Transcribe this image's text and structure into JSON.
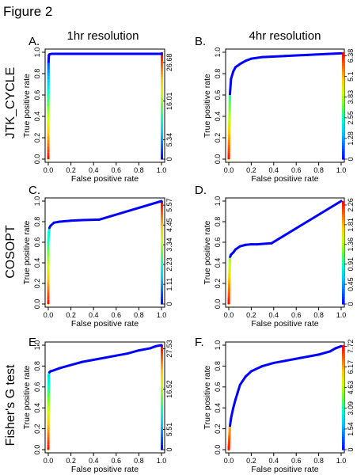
{
  "figure_title": "Figure 2",
  "column_headers": [
    "1hr resolution",
    "4hr resolution"
  ],
  "row_labels": [
    "JTK_CYCLE",
    "COSOPT",
    "Fisher's G test"
  ],
  "axis": {
    "xlabel": "False positive rate",
    "ylabel": "True positive rate",
    "ticks": [
      "0.0",
      "0.2",
      "0.4",
      "0.6",
      "0.8",
      "1.0"
    ]
  },
  "colorscale": [
    "#0000ff",
    "#0066ff",
    "#00ccff",
    "#00ffcc",
    "#66ff33",
    "#ccff00",
    "#ffcc00",
    "#ff6600",
    "#ff0000"
  ],
  "line_color": "#0000ff",
  "chart_data": [
    {
      "panel": "A.",
      "type": "line",
      "method": "JTK_CYCLE",
      "resolution": "1hr resolution",
      "xlabel": "False positive rate",
      "ylabel": "True positive rate",
      "xlim": [
        0,
        1
      ],
      "ylim": [
        0,
        1
      ],
      "x": [
        0.0,
        0.0,
        0.002,
        0.005,
        0.01,
        0.03,
        1.0
      ],
      "y": [
        0.0,
        0.5,
        0.9,
        0.97,
        0.98,
        0.985,
        0.985
      ],
      "colorbar": {
        "ticks": [
          "0",
          "5.34",
          "16.01",
          "26.68"
        ],
        "values": [
          0,
          5.34,
          16.01,
          26.68
        ],
        "max": 29.5
      }
    },
    {
      "panel": "B.",
      "type": "line",
      "method": "JTK_CYCLE",
      "resolution": "4hr resolution",
      "xlabel": "False positive rate",
      "ylabel": "True positive rate",
      "xlim": [
        0,
        1
      ],
      "ylim": [
        0,
        1
      ],
      "x": [
        0.0,
        0.005,
        0.01,
        0.02,
        0.04,
        0.06,
        0.1,
        0.15,
        0.2,
        0.3,
        0.5,
        0.7,
        0.9,
        1.0
      ],
      "y": [
        0.0,
        0.3,
        0.6,
        0.75,
        0.82,
        0.86,
        0.89,
        0.92,
        0.94,
        0.955,
        0.965,
        0.975,
        0.985,
        0.99
      ],
      "colorbar": {
        "ticks": [
          "0",
          "1.28",
          "2.55",
          "3.83",
          "5.1",
          "6.38"
        ],
        "values": [
          0,
          1.28,
          2.55,
          3.83,
          5.1,
          6.38
        ],
        "max": 6.6
      }
    },
    {
      "panel": "C.",
      "type": "line",
      "method": "COSOPT",
      "resolution": "1hr resolution",
      "xlabel": "False positive rate",
      "ylabel": "True positive rate",
      "xlim": [
        0,
        1
      ],
      "ylim": [
        0,
        1
      ],
      "x": [
        0.0,
        0.0,
        0.0,
        0.005,
        0.01,
        0.02,
        0.05,
        0.1,
        0.2,
        0.3,
        0.45,
        1.0
      ],
      "y": [
        0.0,
        0.3,
        0.6,
        0.7,
        0.74,
        0.76,
        0.79,
        0.8,
        0.81,
        0.815,
        0.82,
        1.0
      ],
      "colorbar": {
        "ticks": [
          "0",
          "1.11",
          "2.23",
          "3.34",
          "4.45",
          "5.57"
        ],
        "values": [
          0,
          1.11,
          2.23,
          3.34,
          4.45,
          5.57
        ],
        "max": 5.8
      }
    },
    {
      "panel": "D.",
      "type": "line",
      "method": "COSOPT",
      "resolution": "4hr resolution",
      "xlabel": "False positive rate",
      "ylabel": "True positive rate",
      "xlim": [
        0,
        1
      ],
      "ylim": [
        0,
        1
      ],
      "x": [
        0.0,
        0.005,
        0.01,
        0.02,
        0.04,
        0.06,
        0.1,
        0.15,
        0.2,
        0.25,
        0.38,
        1.0
      ],
      "y": [
        0.0,
        0.25,
        0.45,
        0.48,
        0.5,
        0.53,
        0.56,
        0.575,
        0.58,
        0.58,
        0.59,
        1.0
      ],
      "colorbar": {
        "ticks": [
          "0",
          "0.45",
          "0.91",
          "1.36",
          "1.81",
          "2.26"
        ],
        "values": [
          0,
          0.45,
          0.91,
          1.36,
          1.81,
          2.26
        ],
        "max": 2.35
      }
    },
    {
      "panel": "E.",
      "type": "line",
      "method": "Fisher's G test",
      "resolution": "1hr resolution",
      "xlabel": "False positive rate",
      "ylabel": "True positive rate",
      "xlim": [
        0,
        1
      ],
      "ylim": [
        0,
        1
      ],
      "x": [
        0.0,
        0.0,
        0.005,
        0.01,
        0.02,
        0.05,
        0.1,
        0.2,
        0.3,
        0.4,
        0.5,
        0.6,
        0.7,
        0.8,
        0.9,
        0.95,
        1.0
      ],
      "y": [
        0.0,
        0.5,
        0.72,
        0.74,
        0.75,
        0.76,
        0.78,
        0.81,
        0.84,
        0.86,
        0.88,
        0.9,
        0.92,
        0.95,
        0.97,
        0.99,
        1.0
      ],
      "colorbar": {
        "ticks": [
          "0",
          "5.51",
          "16.52",
          "27.53"
        ],
        "values": [
          0,
          5.51,
          16.52,
          27.53
        ],
        "max": 28.5
      }
    },
    {
      "panel": "F.",
      "type": "line",
      "method": "Fisher's G test",
      "resolution": "4hr resolution",
      "xlabel": "False positive rate",
      "ylabel": "True positive rate",
      "xlim": [
        0,
        1
      ],
      "ylim": [
        0,
        1
      ],
      "x": [
        0.0,
        0.005,
        0.01,
        0.02,
        0.04,
        0.06,
        0.08,
        0.1,
        0.15,
        0.2,
        0.3,
        0.4,
        0.5,
        0.6,
        0.7,
        0.8,
        0.9,
        0.95,
        1.0
      ],
      "y": [
        0.0,
        0.12,
        0.22,
        0.3,
        0.4,
        0.48,
        0.55,
        0.62,
        0.7,
        0.75,
        0.8,
        0.83,
        0.85,
        0.87,
        0.89,
        0.91,
        0.94,
        0.97,
        0.99
      ],
      "colorbar": {
        "ticks": [
          "0",
          "1.54",
          "3.09",
          "4.63",
          "6.17",
          "7.72"
        ],
        "values": [
          0,
          1.54,
          3.09,
          4.63,
          6.17,
          7.72
        ],
        "max": 7.8
      }
    }
  ]
}
